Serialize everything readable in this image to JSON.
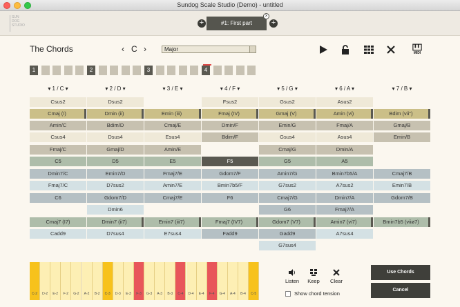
{
  "window": {
    "title": "Sundog Scale Studio (Demo) - untitled"
  },
  "toolbar": {
    "logo_text": "SUN DOG STUDIO",
    "part_label": "#1: First part",
    "add_left": "+",
    "add_right": "+",
    "close": "×"
  },
  "header": {
    "title": "The Chords",
    "prev": "‹",
    "key": "C",
    "next": "›",
    "scale": "Major"
  },
  "icons": {
    "play": "play-icon",
    "lock": "lock-icon",
    "grid": "grid-icon",
    "close": "close-icon",
    "midi": "MIDI"
  },
  "steps": [
    {
      "label": "1",
      "on": true
    },
    {
      "label": "",
      "on": false
    },
    {
      "label": "",
      "on": false
    },
    {
      "label": "",
      "on": false
    },
    {
      "label": "",
      "on": false
    },
    {
      "label": "2",
      "on": true
    },
    {
      "label": "",
      "on": false
    },
    {
      "label": "",
      "on": false
    },
    {
      "label": "",
      "on": false
    },
    {
      "label": "",
      "on": false
    },
    {
      "label": "3",
      "on": true
    },
    {
      "label": "",
      "on": false
    },
    {
      "label": "",
      "on": false
    },
    {
      "label": "",
      "on": false
    },
    {
      "label": "",
      "on": false
    },
    {
      "label": "4",
      "on": true
    },
    {
      "label": "",
      "on": false
    },
    {
      "label": "",
      "on": false
    },
    {
      "label": "",
      "on": false
    },
    {
      "label": "",
      "on": false
    }
  ],
  "columns": [
    {
      "head": "▾ 1 / C ▾",
      "cells": [
        [
          "Csus2",
          "cream"
        ],
        [
          "Cmaj (I)",
          "gold",
          "mark"
        ],
        [
          "Amin/C",
          "tan"
        ],
        [
          "Csus4",
          "cream"
        ],
        [
          "Fmaj/C",
          "tan"
        ],
        [
          "C5",
          "green"
        ],
        [
          "Dmin7/C",
          "blue"
        ],
        [
          "Fmaj7/C",
          "lblue"
        ],
        [
          "C6",
          "blue"
        ],
        null,
        [
          "Cmaj7 (I7)",
          "green"
        ],
        [
          "Cadd9",
          "lblue"
        ],
        null
      ]
    },
    {
      "head": "▾ 2 / D ▾",
      "cells": [
        [
          "Dsus2",
          "cream"
        ],
        [
          "Dmin (ii)",
          "gold",
          "mark"
        ],
        [
          "Bdim/D",
          "tan"
        ],
        [
          "Dsus4",
          "cream"
        ],
        [
          "Gmaj/D",
          "tan"
        ],
        [
          "D5",
          "green"
        ],
        [
          "Emin7/D",
          "blue"
        ],
        [
          "D7sus2",
          "lblue"
        ],
        [
          "Gdom7/D",
          "blue"
        ],
        [
          "Dmin6",
          "lblue"
        ],
        [
          "Dmin7 (ii7)",
          "green",
          "mark"
        ],
        [
          "D7sus4",
          "lblue"
        ],
        null
      ]
    },
    {
      "head": "▾ 3 / E ▾",
      "cells": [
        null,
        [
          "Emin (iii)",
          "gold",
          "mark"
        ],
        [
          "Cmaj/E",
          "tan"
        ],
        [
          "Esus4",
          "cream"
        ],
        [
          "Amin/E",
          "tan"
        ],
        [
          "E5",
          "green"
        ],
        [
          "Fmaj7/E",
          "blue"
        ],
        [
          "Amin7/E",
          "lblue"
        ],
        [
          "Cmaj7/E",
          "blue"
        ],
        null,
        [
          "Emin7 (iii7)",
          "green",
          "mark"
        ],
        [
          "E7sus4",
          "lblue"
        ],
        null
      ]
    },
    {
      "head": "▾ 4 / F ▾",
      "cells": [
        [
          "Fsus2",
          "cream"
        ],
        [
          "Fmaj (IV)",
          "gold",
          "mark"
        ],
        [
          "Dmin/F",
          "tan"
        ],
        [
          "Bdim/F",
          "tan"
        ],
        null,
        [
          "F5",
          "dark"
        ],
        [
          "Gdom7/F",
          "blue"
        ],
        [
          "Bmin7b5/F",
          "lblue"
        ],
        [
          "F6",
          "blue"
        ],
        null,
        [
          "Fmaj7 (IV7)",
          "green",
          "mark"
        ],
        [
          "Fadd9",
          "blue"
        ],
        null
      ]
    },
    {
      "head": "▾ 5 / G ▾",
      "cells": [
        [
          "Gsus2",
          "cream"
        ],
        [
          "Gmaj (V)",
          "gold",
          "mark"
        ],
        [
          "Emin/G",
          "tan"
        ],
        [
          "Gsus4",
          "cream"
        ],
        [
          "Cmaj/G",
          "tan"
        ],
        [
          "G5",
          "green"
        ],
        [
          "Amin7/G",
          "blue"
        ],
        [
          "G7sus2",
          "lblue"
        ],
        [
          "Cmaj7/G",
          "blue"
        ],
        [
          "G6",
          "blue"
        ],
        [
          "Gdom7 (V7)",
          "green",
          "mark"
        ],
        [
          "Gadd9",
          "blue"
        ],
        [
          "G7sus4",
          "lblue"
        ]
      ]
    },
    {
      "head": "▾ 6 / A ▾",
      "cells": [
        [
          "Asus2",
          "cream"
        ],
        [
          "Amin (vi)",
          "gold",
          "mark"
        ],
        [
          "Fmaj/A",
          "tan"
        ],
        [
          "Asus4",
          "cream"
        ],
        [
          "Dmin/A",
          "tan"
        ],
        [
          "A5",
          "green"
        ],
        [
          "Bmin7b5/A",
          "blue"
        ],
        [
          "A7sus2",
          "lblue"
        ],
        [
          "Dmin7/A",
          "blue"
        ],
        [
          "Fmaj7/A",
          "blue"
        ],
        [
          "Amin7 (vi7)",
          "green",
          "mark"
        ],
        [
          "A7sus4",
          "lblue"
        ],
        null
      ]
    },
    {
      "head": "▾ 7 / B ▾",
      "cells": [
        null,
        [
          "Bdim (vii°)",
          "gold",
          "mark"
        ],
        [
          "Gmaj/B",
          "tan"
        ],
        [
          "Emin/B",
          "tan"
        ],
        null,
        null,
        [
          "Cmaj7/B",
          "blue"
        ],
        [
          "Emin7/B",
          "lblue"
        ],
        [
          "Gdom7/B",
          "blue"
        ],
        null,
        [
          "Bmin7b5 (viiø7)",
          "green",
          "mark"
        ],
        null,
        null
      ]
    }
  ],
  "keyboard": {
    "keys": [
      [
        "C-2",
        "gold"
      ],
      [
        "D-2",
        "pale"
      ],
      [
        "E-2",
        "pale"
      ],
      [
        "F-2",
        "pale"
      ],
      [
        "G-2",
        "pale"
      ],
      [
        "A-2",
        "pale"
      ],
      [
        "B-2",
        "pale"
      ],
      [
        "C-3",
        "gold"
      ],
      [
        "D-3",
        "pale"
      ],
      [
        "E-3",
        "pale"
      ],
      [
        "F-3",
        "red"
      ],
      [
        "G-3",
        "pale"
      ],
      [
        "A-3",
        "pale"
      ],
      [
        "B-3",
        "pale"
      ],
      [
        "C-4",
        "red"
      ],
      [
        "D-4",
        "pale"
      ],
      [
        "E-4",
        "pale"
      ],
      [
        "F-4",
        "red"
      ],
      [
        "G-4",
        "pale"
      ],
      [
        "A-4",
        "pale"
      ],
      [
        "B-4",
        "pale"
      ],
      [
        "C-5",
        "gold"
      ]
    ]
  },
  "actions": {
    "listen": "Listen",
    "keep": "Keep",
    "clear": "Clear",
    "use": "Use Chords",
    "cancel": "Cancel",
    "tension": "Show chord tension"
  },
  "colors": {
    "cream": "#efe9d8",
    "gold": "#cbbf88",
    "tan": "#c7c1b0",
    "blue": "#b5c0c4",
    "lblue": "#d4e1e4",
    "green": "#aebdaa",
    "dark": "#5a5951",
    "red": "#e8565a",
    "keygold": "#f7c21c",
    "keypale": "#fdefb4"
  }
}
